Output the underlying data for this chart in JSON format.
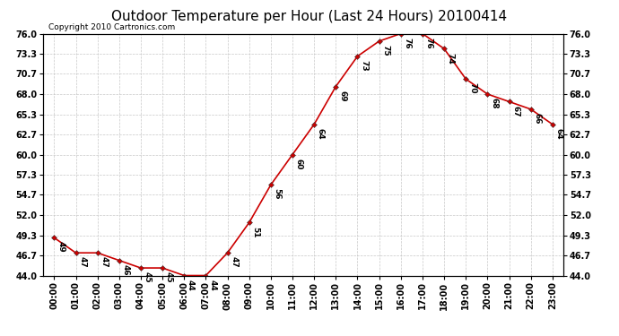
{
  "title": "Outdoor Temperature per Hour (Last 24 Hours) 20100414",
  "copyright": "Copyright 2010 Cartronics.com",
  "hours": [
    "00:00",
    "01:00",
    "02:00",
    "03:00",
    "04:00",
    "05:00",
    "06:00",
    "07:00",
    "08:00",
    "09:00",
    "10:00",
    "11:00",
    "12:00",
    "13:00",
    "14:00",
    "15:00",
    "16:00",
    "17:00",
    "18:00",
    "19:00",
    "20:00",
    "21:00",
    "22:00",
    "23:00"
  ],
  "temps": [
    49,
    47,
    47,
    46,
    45,
    45,
    44,
    44,
    47,
    51,
    56,
    60,
    64,
    69,
    73,
    75,
    76,
    76,
    74,
    70,
    68,
    67,
    66,
    64
  ],
  "line_color": "#cc0000",
  "marker_color": "#cc0000",
  "bg_color": "#ffffff",
  "grid_color": "#c8c8c8",
  "ylim_min": 44.0,
  "ylim_max": 76.0,
  "yticks": [
    44.0,
    46.7,
    49.3,
    52.0,
    54.7,
    57.3,
    60.0,
    62.7,
    65.3,
    68.0,
    70.7,
    73.3,
    76.0
  ],
  "ytick_labels": [
    "44.0",
    "46.7",
    "49.3",
    "52.0",
    "54.7",
    "57.3",
    "60.0",
    "62.7",
    "65.3",
    "68.0",
    "70.7",
    "73.3",
    "76.0"
  ],
  "title_fontsize": 11,
  "label_fontsize": 7,
  "annot_fontsize": 6.5,
  "copyright_fontsize": 6.5
}
